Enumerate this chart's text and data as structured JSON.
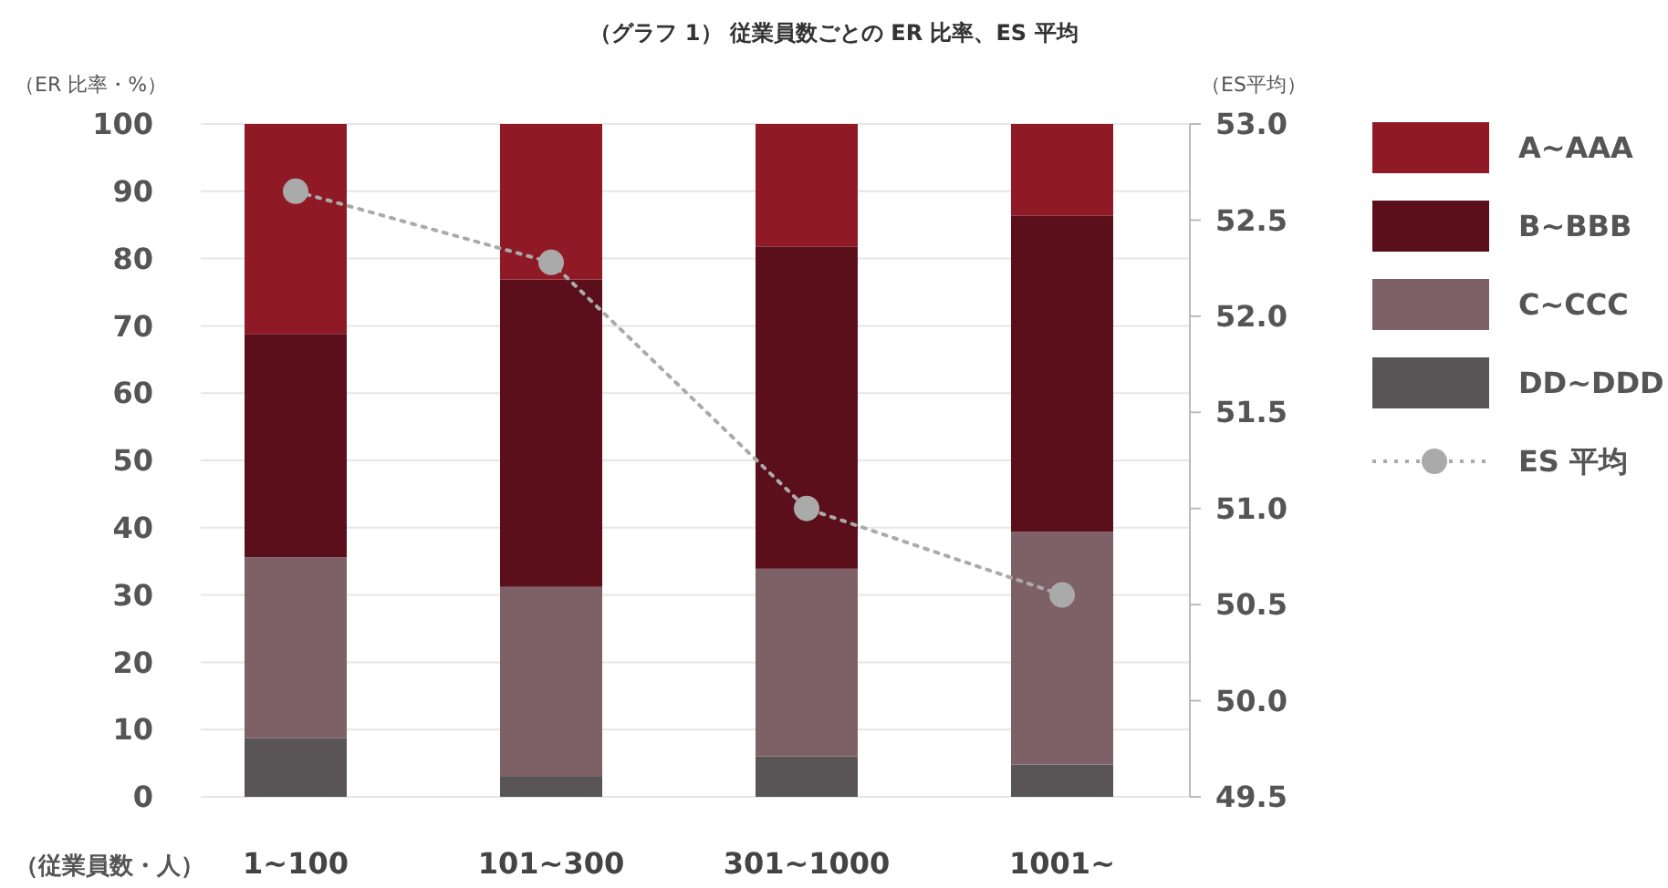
{
  "chart_data": {
    "type": "bar",
    "title": "（グラフ 1） 従業員数ごとの ER 比率、ES 平均",
    "ylabel": "（ER 比率・%）",
    "y2label": "（ES平均）",
    "xlabel": "（従業員数・人）",
    "categories": [
      "1~100",
      "101~300",
      "301~1000",
      "1001~"
    ],
    "stacked": true,
    "series": [
      {
        "name": "DD~DDD",
        "color": "#595556",
        "values": [
          8.7,
          3.1,
          6.0,
          4.8
        ]
      },
      {
        "name": "C~CCC",
        "color": "#7d6166",
        "values": [
          26.9,
          28.1,
          27.9,
          34.6
        ]
      },
      {
        "name": "B~BBB",
        "color": "#5a0f1a",
        "values": [
          33.2,
          45.7,
          47.9,
          47.0
        ]
      },
      {
        "name": "A~AAA",
        "color": "#8f1a26",
        "values": [
          31.2,
          23.1,
          18.2,
          13.6
        ]
      },
      {
        "name": "ES 平均",
        "type": "line",
        "axis": "y2",
        "color": "#aaaaaa",
        "values": [
          52.65,
          52.28,
          51.0,
          50.55
        ],
        "marker": "circle",
        "line_style": "dotted"
      }
    ],
    "ylim": [
      0,
      100
    ],
    "yticks": [
      0,
      10,
      20,
      30,
      40,
      50,
      60,
      70,
      80,
      90,
      100
    ],
    "y2lim": [
      49.5,
      53.0
    ],
    "y2ticks": [
      {
        "value": 49.5,
        "label": "49.5"
      },
      {
        "value": 50,
        "label": "50.0"
      },
      {
        "value": 50.5,
        "label": "50.5"
      },
      {
        "value": 51,
        "label": "51.0"
      },
      {
        "value": 51.5,
        "label": "51.5"
      },
      {
        "value": 52,
        "label": "52.0"
      },
      {
        "value": 52.5,
        "label": "52.5"
      },
      {
        "value": 53,
        "label": "53.0"
      }
    ],
    "grid": "y",
    "legend": "right"
  }
}
